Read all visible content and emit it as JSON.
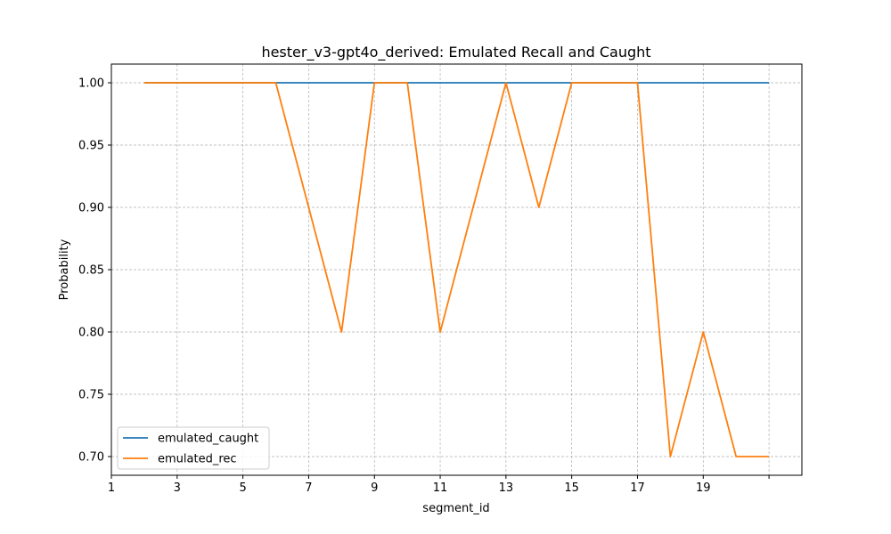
{
  "chart_data": {
    "type": "line",
    "title": "hester_v3-gpt4o_derived: Emulated Recall and Caught",
    "xlabel": "segment_id",
    "ylabel": "Probability",
    "xlim": [
      1,
      22
    ],
    "ylim": [
      0.685,
      1.015
    ],
    "x_ticks": [
      1,
      3,
      5,
      7,
      9,
      11,
      13,
      15,
      17,
      19,
      21
    ],
    "x_tick_labels": [
      "1",
      "3",
      "5",
      "7",
      "9",
      "11",
      "13",
      "15",
      "17",
      "19",
      ""
    ],
    "y_ticks": [
      0.7,
      0.75,
      0.8,
      0.85,
      0.9,
      0.95,
      1.0
    ],
    "y_tick_labels": [
      "0.70",
      "0.75",
      "0.80",
      "0.85",
      "0.90",
      "0.95",
      "1.00"
    ],
    "grid": true,
    "legend_position": "lower-left",
    "x": [
      2,
      3,
      4,
      5,
      6,
      7,
      8,
      9,
      10,
      11,
      12,
      13,
      14,
      15,
      16,
      17,
      18,
      19,
      20,
      21
    ],
    "series": [
      {
        "name": "emulated_caught",
        "color": "#1f77b4",
        "values": [
          1.0,
          1.0,
          1.0,
          1.0,
          1.0,
          1.0,
          1.0,
          1.0,
          1.0,
          1.0,
          1.0,
          1.0,
          1.0,
          1.0,
          1.0,
          1.0,
          1.0,
          1.0,
          1.0,
          1.0
        ]
      },
      {
        "name": "emulated_rec",
        "color": "#ff7f0e",
        "values": [
          1.0,
          1.0,
          1.0,
          1.0,
          1.0,
          0.9,
          0.8,
          1.0,
          1.0,
          0.8,
          0.9,
          1.0,
          0.9,
          1.0,
          1.0,
          1.0,
          0.7,
          0.8,
          0.7,
          0.7
        ]
      }
    ]
  }
}
